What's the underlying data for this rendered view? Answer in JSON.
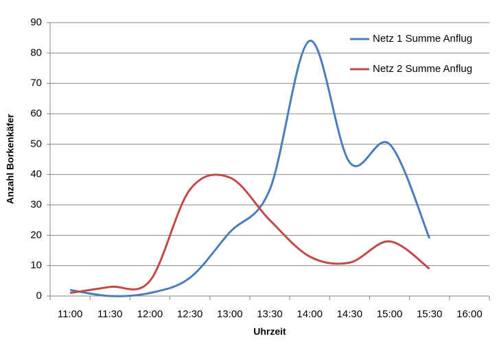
{
  "chart_data": {
    "type": "line",
    "x_label": "Uhrzeit",
    "y_label": "Anzahl Borkenkäfer",
    "categories": [
      "11:00",
      "11:30",
      "12:00",
      "12:30",
      "13:00",
      "13:30",
      "14:00",
      "14:30",
      "15:00",
      "15:30",
      "16:00"
    ],
    "series": [
      {
        "name": "Netz 1 Summe Anflug",
        "color": "#4a7ebb",
        "values": [
          2,
          0,
          1,
          6,
          21,
          35,
          84,
          44,
          50,
          19,
          null
        ]
      },
      {
        "name": "Netz 2 Summe Anflug",
        "color": "#be4b48",
        "values": [
          1,
          3,
          5,
          35,
          39,
          25,
          13,
          11,
          18,
          9,
          null
        ]
      }
    ],
    "ylim": [
      0,
      90
    ],
    "yticks": [
      0,
      10,
      20,
      30,
      40,
      50,
      60,
      70,
      80,
      90
    ],
    "grid": true,
    "smooth": true,
    "legend": "top-right"
  }
}
